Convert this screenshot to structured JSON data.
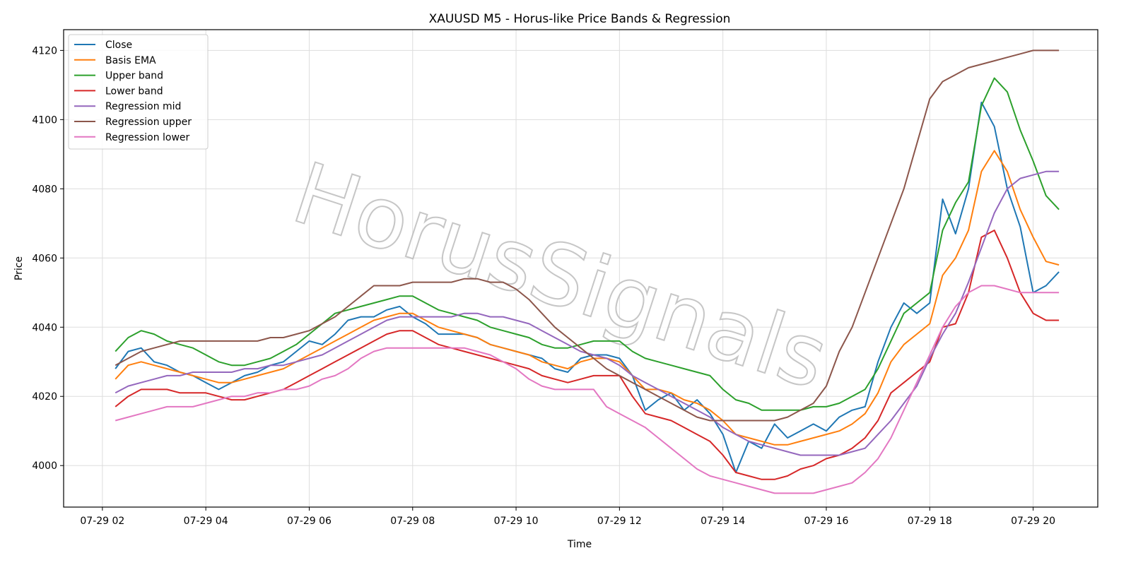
{
  "chart_data": {
    "type": "line",
    "title": "XAUUSD M5 - Horus-like Price Bands & Regression",
    "xlabel": "Time",
    "ylabel": "Price",
    "watermark": "HorusSignals",
    "x_ticks": [
      "07-29 02",
      "07-29 04",
      "07-29 06",
      "07-29 08",
      "07-29 10",
      "07-29 12",
      "07-29 14",
      "07-29 16",
      "07-29 18",
      "07-29 20"
    ],
    "x_tick_hours": [
      2,
      4,
      6,
      8,
      10,
      12,
      14,
      16,
      18,
      20
    ],
    "xlim_hours": [
      1.25,
      21.25
    ],
    "y_ticks": [
      4000,
      4020,
      4040,
      4060,
      4080,
      4100,
      4120
    ],
    "ylim": [
      3988,
      4126
    ],
    "grid": true,
    "legend_position": "upper-left",
    "x_hours": [
      2.25,
      2.5,
      2.75,
      3.0,
      3.25,
      3.5,
      3.75,
      4.0,
      4.25,
      4.5,
      4.75,
      5.0,
      5.25,
      5.5,
      5.75,
      6.0,
      6.25,
      6.5,
      6.75,
      7.0,
      7.25,
      7.5,
      7.75,
      8.0,
      8.25,
      8.5,
      8.75,
      9.0,
      9.25,
      9.5,
      9.75,
      10.0,
      10.25,
      10.5,
      10.75,
      11.0,
      11.25,
      11.5,
      11.75,
      12.0,
      12.25,
      12.5,
      12.75,
      13.0,
      13.25,
      13.5,
      13.75,
      14.0,
      14.25,
      14.5,
      14.75,
      15.0,
      15.25,
      15.5,
      15.75,
      16.0,
      16.25,
      16.5,
      16.75,
      17.0,
      17.25,
      17.5,
      17.75,
      18.0,
      18.25,
      18.5,
      18.75,
      19.0,
      19.25,
      19.5,
      19.75,
      20.0,
      20.25,
      20.5
    ],
    "series": [
      {
        "name": "Close",
        "color": "#1f77b4",
        "values": [
          4028,
          4033,
          4034,
          4030,
          4029,
          4027,
          4026,
          4024,
          4022,
          4024,
          4026,
          4027,
          4029,
          4030,
          4033,
          4036,
          4035,
          4038,
          4042,
          4043,
          4043,
          4045,
          4046,
          4043,
          4041,
          4038,
          4038,
          4038,
          4037,
          4035,
          4034,
          4033,
          4032,
          4031,
          4028,
          4027,
          4031,
          4032,
          4032,
          4031,
          4026,
          4016,
          4019,
          4021,
          4016,
          4019,
          4015,
          4009,
          3998,
          4007,
          4005,
          4012,
          4008,
          4010,
          4012,
          4010,
          4014,
          4016,
          4017,
          4030,
          4040,
          4047,
          4044,
          4047,
          4077,
          4067,
          4080,
          4105,
          4098,
          4080,
          4069,
          4050,
          4052,
          4056
        ]
      },
      {
        "name": "Basis EMA",
        "color": "#ff7f0e",
        "values": [
          4025,
          4029,
          4030,
          4029,
          4028,
          4027,
          4026,
          4025,
          4024,
          4024,
          4025,
          4026,
          4027,
          4028,
          4030,
          4032,
          4034,
          4036,
          4038,
          4040,
          4042,
          4043,
          4044,
          4044,
          4042,
          4040,
          4039,
          4038,
          4037,
          4035,
          4034,
          4033,
          4032,
          4030,
          4029,
          4028,
          4030,
          4031,
          4031,
          4030,
          4026,
          4022,
          4022,
          4021,
          4019,
          4018,
          4016,
          4013,
          4009,
          4008,
          4007,
          4006,
          4006,
          4007,
          4008,
          4009,
          4010,
          4012,
          4015,
          4021,
          4030,
          4035,
          4038,
          4041,
          4055,
          4060,
          4068,
          4085,
          4091,
          4085,
          4074,
          4066,
          4059,
          4058
        ]
      },
      {
        "name": "Upper band",
        "color": "#2ca02c",
        "values": [
          4033,
          4037,
          4039,
          4038,
          4036,
          4035,
          4034,
          4032,
          4030,
          4029,
          4029,
          4030,
          4031,
          4033,
          4035,
          4038,
          4041,
          4044,
          4045,
          4046,
          4047,
          4048,
          4049,
          4049,
          4047,
          4045,
          4044,
          4043,
          4042,
          4040,
          4039,
          4038,
          4037,
          4035,
          4034,
          4034,
          4035,
          4036,
          4036,
          4036,
          4033,
          4031,
          4030,
          4029,
          4028,
          4027,
          4026,
          4022,
          4019,
          4018,
          4016,
          4016,
          4016,
          4016,
          4017,
          4017,
          4018,
          4020,
          4022,
          4028,
          4036,
          4044,
          4047,
          4050,
          4068,
          4076,
          4082,
          4104,
          4112,
          4108,
          4097,
          4088,
          4078,
          4074
        ]
      },
      {
        "name": "Lower band",
        "color": "#d62728",
        "values": [
          4017,
          4020,
          4022,
          4022,
          4022,
          4021,
          4021,
          4021,
          4020,
          4019,
          4019,
          4020,
          4021,
          4022,
          4024,
          4026,
          4028,
          4030,
          4032,
          4034,
          4036,
          4038,
          4039,
          4039,
          4037,
          4035,
          4034,
          4033,
          4032,
          4031,
          4030,
          4029,
          4028,
          4026,
          4025,
          4024,
          4025,
          4026,
          4026,
          4026,
          4020,
          4015,
          4014,
          4013,
          4011,
          4009,
          4007,
          4003,
          3998,
          3997,
          3996,
          3996,
          3997,
          3999,
          4000,
          4002,
          4003,
          4005,
          4008,
          4013,
          4021,
          4024,
          4027,
          4030,
          4040,
          4041,
          4050,
          4066,
          4068,
          4060,
          4050,
          4044,
          4042,
          4042
        ]
      },
      {
        "name": "Regression mid",
        "color": "#9467bd",
        "values": [
          4021,
          4023,
          4024,
          4025,
          4026,
          4026,
          4027,
          4027,
          4027,
          4027,
          4028,
          4028,
          4029,
          4029,
          4030,
          4031,
          4032,
          4034,
          4036,
          4038,
          4040,
          4042,
          4043,
          4043,
          4043,
          4043,
          4043,
          4044,
          4044,
          4043,
          4043,
          4042,
          4041,
          4039,
          4037,
          4035,
          4033,
          4032,
          4031,
          4029,
          4026,
          4024,
          4022,
          4020,
          4018,
          4016,
          4014,
          4011,
          4009,
          4007,
          4006,
          4005,
          4004,
          4003,
          4003,
          4003,
          4003,
          4004,
          4005,
          4009,
          4013,
          4018,
          4023,
          4031,
          4038,
          4044,
          4053,
          4063,
          4073,
          4080,
          4083,
          4084,
          4085,
          4085
        ]
      },
      {
        "name": "Regression upper",
        "color": "#8c564b",
        "values": [
          4029,
          4031,
          4033,
          4034,
          4035,
          4036,
          4036,
          4036,
          4036,
          4036,
          4036,
          4036,
          4037,
          4037,
          4038,
          4039,
          4041,
          4043,
          4046,
          4049,
          4052,
          4052,
          4052,
          4053,
          4053,
          4053,
          4053,
          4054,
          4054,
          4053,
          4053,
          4051,
          4048,
          4044,
          4040,
          4037,
          4034,
          4031,
          4028,
          4026,
          4024,
          4022,
          4020,
          4018,
          4016,
          4014,
          4013,
          4013,
          4013,
          4013,
          4013,
          4013,
          4014,
          4016,
          4018,
          4023,
          4033,
          4040,
          4050,
          4060,
          4070,
          4080,
          4093,
          4106,
          4111,
          4113,
          4115,
          4116,
          4117,
          4118,
          4119,
          4120,
          4120,
          4120
        ]
      },
      {
        "name": "Regression lower",
        "color": "#e377c2",
        "values": [
          4013,
          4014,
          4015,
          4016,
          4017,
          4017,
          4017,
          4018,
          4019,
          4020,
          4020,
          4021,
          4021,
          4022,
          4022,
          4023,
          4025,
          4026,
          4028,
          4031,
          4033,
          4034,
          4034,
          4034,
          4034,
          4034,
          4034,
          4034,
          4033,
          4032,
          4030,
          4028,
          4025,
          4023,
          4022,
          4022,
          4022,
          4022,
          4017,
          4015,
          4013,
          4011,
          4008,
          4005,
          4002,
          3999,
          3997,
          3996,
          3995,
          3994,
          3993,
          3992,
          3992,
          3992,
          3992,
          3993,
          3994,
          3995,
          3998,
          4002,
          4008,
          4016,
          4024,
          4032,
          4040,
          4046,
          4050,
          4052,
          4052,
          4051,
          4050,
          4050,
          4050,
          4050
        ]
      }
    ]
  }
}
